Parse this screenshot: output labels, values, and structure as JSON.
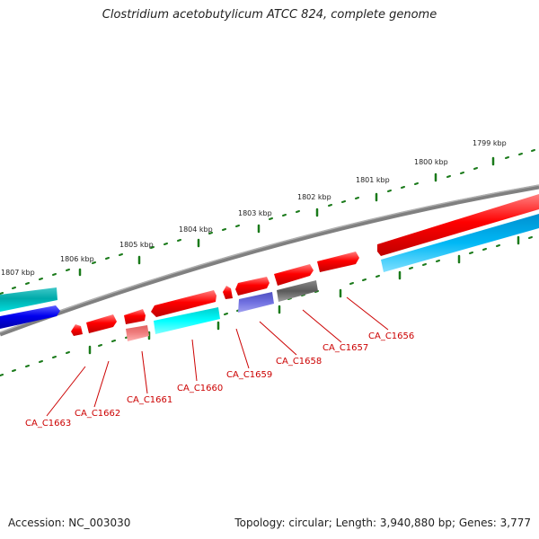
{
  "title": "Clostridium acetobutylicum ATCC 824, complete genome",
  "footer": {
    "accession": "Accession: NC_003030",
    "summary": "Topology: circular; Length: 3,940,880 bp; Genes: 3,777"
  },
  "ruler_labels": [
    "1799 kbp",
    "1800 kbp",
    "1801 kbp",
    "1802 kbp",
    "1803 kbp",
    "1804 kbp",
    "1805 kbp",
    "1806 kbp",
    "1807 kbp"
  ],
  "gene_labels": [
    "CA_C1656",
    "CA_C1657",
    "CA_C1658",
    "CA_C1659",
    "CA_C1660",
    "CA_C1661",
    "CA_C1662",
    "CA_C1663"
  ],
  "colors": {
    "backbone": "#808080",
    "ruler_tick": "#1a7a1a",
    "label_red": "#cc0000",
    "red": "#ff0000",
    "blue": "#0000ee",
    "teal": "#00aaaa",
    "cyan": "#00e6e6",
    "light_blue": "#00aaee",
    "slate": "#6a6ad8",
    "salmon": "#f08080",
    "gray": "#666666"
  }
}
